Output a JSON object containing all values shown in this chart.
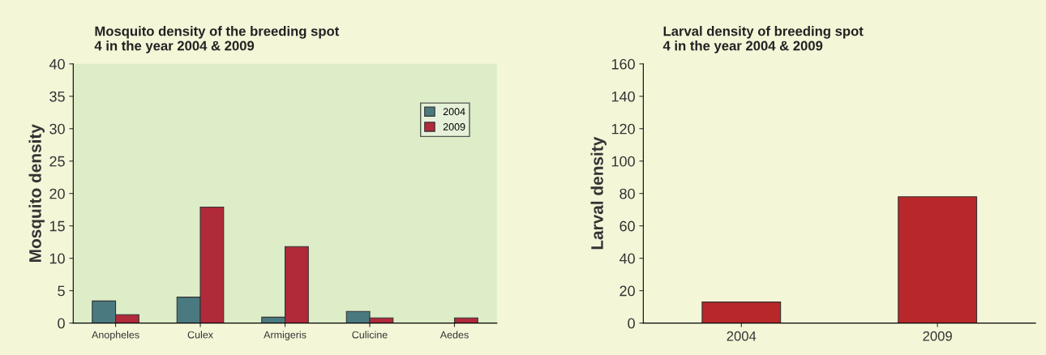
{
  "chart_data": [
    {
      "type": "bar",
      "title": "Mosquito density of the breeding spot\n4 in the year 2004 & 2009",
      "ylabel": "Mosquito density",
      "categories": [
        "Anopheles",
        "Culex",
        "Armigeris",
        "Culicine",
        "Aedes"
      ],
      "series": [
        {
          "name": "2004",
          "color": "#4a7a80",
          "values": [
            3.4,
            4.0,
            0.9,
            1.8,
            null
          ]
        },
        {
          "name": "2009",
          "color": "#b02a3a",
          "values": [
            1.3,
            17.9,
            11.8,
            0.8,
            0.8
          ]
        }
      ],
      "ylim": [
        0,
        40
      ],
      "yticks": [
        0,
        5,
        10,
        15,
        20,
        25,
        30,
        35,
        40
      ],
      "legend": "top right",
      "grid": false
    },
    {
      "type": "bar",
      "title": "Larval density of breeding spot\n4 in the year 2004 & 2009",
      "ylabel": "Larval density",
      "categories": [
        "2004",
        "2009"
      ],
      "values": [
        13,
        78
      ],
      "color": "#b8282a",
      "ylim": [
        0,
        160
      ],
      "yticks": [
        0,
        20,
        40,
        60,
        80,
        100,
        120,
        140,
        160
      ],
      "legend": false,
      "grid": false
    }
  ]
}
